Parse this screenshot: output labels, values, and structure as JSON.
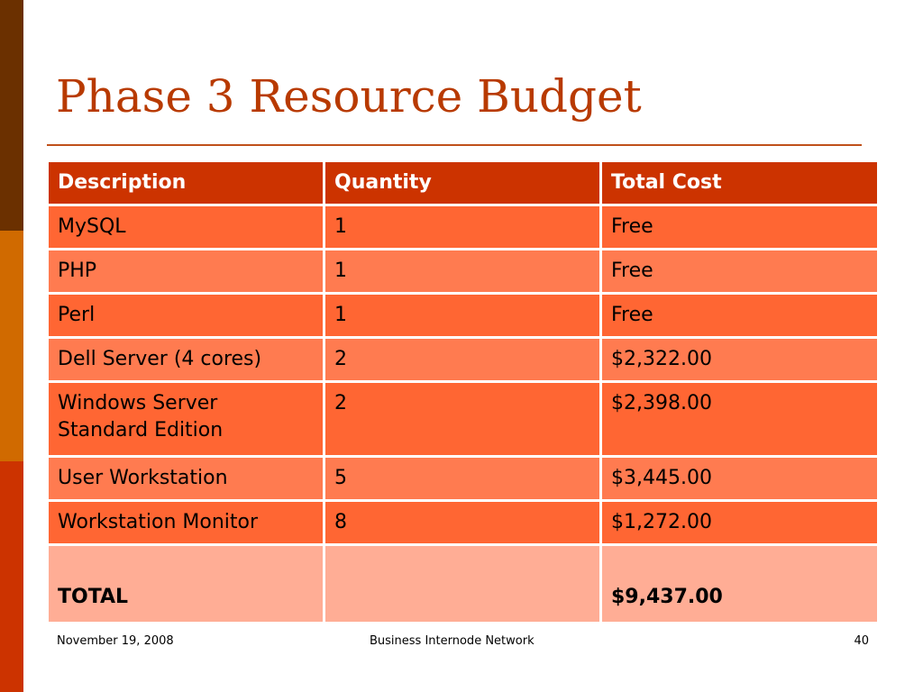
{
  "slide": {
    "title": "Phase 3 Resource Budget"
  },
  "table": {
    "headers": [
      "Description",
      "Quantity",
      "Total Cost"
    ],
    "rows": [
      [
        "MySQL",
        "1",
        "Free"
      ],
      [
        "PHP",
        "1",
        "Free"
      ],
      [
        "Perl",
        "1",
        "Free"
      ],
      [
        "Dell Server (4 cores)",
        "2",
        "$2,322.00"
      ],
      [
        "Windows Server Standard Edition",
        "2",
        "$2,398.00"
      ],
      [
        "User Workstation",
        "5",
        "$3,445.00"
      ],
      [
        "Workstation Monitor",
        "8",
        "$1,272.00"
      ]
    ],
    "total": [
      "TOTAL",
      "",
      "$9,437.00"
    ]
  },
  "footer": {
    "date": "November 19, 2008",
    "center": "Business Internode Network",
    "page": "40"
  },
  "colors": {
    "title": "#b83a00",
    "header_fill": "#cc3300",
    "row_dark": "#ff6633",
    "row_light": "#ff7b50",
    "total_fill": "#ffad95",
    "side_bar": [
      "#6b3000",
      "#d06a00",
      "#cc3300"
    ]
  }
}
